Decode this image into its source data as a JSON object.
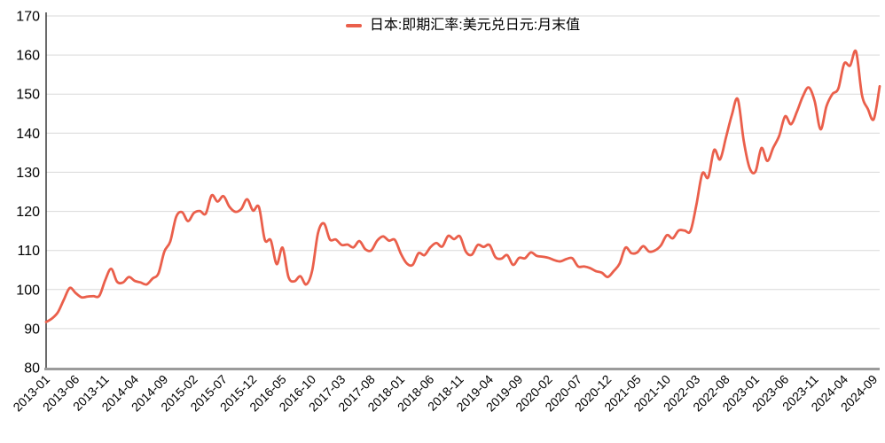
{
  "page": {
    "background": "#ffffff"
  },
  "legend": {
    "label": "日本:即期汇率:美元兑日元:月末值"
  },
  "chart_data": {
    "type": "line",
    "title": "",
    "legend_position": "top-center",
    "grid": "horizontal",
    "xlabel": "",
    "ylabel": "",
    "ylim": [
      80,
      170
    ],
    "ytick_step": 10,
    "yticks": [
      80,
      90,
      100,
      110,
      120,
      130,
      140,
      150,
      160,
      170
    ],
    "x_tick_labels": [
      "2013-01",
      "2013-06",
      "2013-11",
      "2014-04",
      "2014-09",
      "2015-02",
      "2015-07",
      "2015-12",
      "2016-05",
      "2016-10",
      "2017-03",
      "2017-08",
      "2018-01",
      "2018-06",
      "2018-11",
      "2019-04",
      "2019-09",
      "2020-02",
      "2020-07",
      "2020-12",
      "2021-05",
      "2021-10",
      "2022-03",
      "2022-08",
      "2023-01",
      "2023-06",
      "2023-11",
      "2024-04",
      "2024-09"
    ],
    "x_tick_every": 5,
    "series": [
      {
        "name": "日本:即期汇率:美元兑日元:月末值",
        "color": "#EA5F4B",
        "months": [
          "2013-01",
          "2013-02",
          "2013-03",
          "2013-04",
          "2013-05",
          "2013-06",
          "2013-07",
          "2013-08",
          "2013-09",
          "2013-10",
          "2013-11",
          "2013-12",
          "2014-01",
          "2014-02",
          "2014-03",
          "2014-04",
          "2014-05",
          "2014-06",
          "2014-07",
          "2014-08",
          "2014-09",
          "2014-10",
          "2014-11",
          "2014-12",
          "2015-01",
          "2015-02",
          "2015-03",
          "2015-04",
          "2015-05",
          "2015-06",
          "2015-07",
          "2015-08",
          "2015-09",
          "2015-10",
          "2015-11",
          "2015-12",
          "2016-01",
          "2016-02",
          "2016-03",
          "2016-04",
          "2016-05",
          "2016-06",
          "2016-07",
          "2016-08",
          "2016-09",
          "2016-10",
          "2016-11",
          "2016-12",
          "2017-01",
          "2017-02",
          "2017-03",
          "2017-04",
          "2017-05",
          "2017-06",
          "2017-07",
          "2017-08",
          "2017-09",
          "2017-10",
          "2017-11",
          "2017-12",
          "2018-01",
          "2018-02",
          "2018-03",
          "2018-04",
          "2018-05",
          "2018-06",
          "2018-07",
          "2018-08",
          "2018-09",
          "2018-10",
          "2018-11",
          "2018-12",
          "2019-01",
          "2019-02",
          "2019-03",
          "2019-04",
          "2019-05",
          "2019-06",
          "2019-07",
          "2019-08",
          "2019-09",
          "2019-10",
          "2019-11",
          "2019-12",
          "2020-01",
          "2020-02",
          "2020-03",
          "2020-04",
          "2020-05",
          "2020-06",
          "2020-07",
          "2020-08",
          "2020-09",
          "2020-10",
          "2020-11",
          "2020-12",
          "2021-01",
          "2021-02",
          "2021-03",
          "2021-04",
          "2021-05",
          "2021-06",
          "2021-07",
          "2021-08",
          "2021-09",
          "2021-10",
          "2021-11",
          "2021-12",
          "2022-01",
          "2022-02",
          "2022-03",
          "2022-04",
          "2022-05",
          "2022-06",
          "2022-07",
          "2022-08",
          "2022-09",
          "2022-10",
          "2022-11",
          "2022-12",
          "2023-01",
          "2023-02",
          "2023-03",
          "2023-04",
          "2023-05",
          "2023-06",
          "2023-07",
          "2023-08",
          "2023-09",
          "2023-10",
          "2023-11",
          "2023-12",
          "2024-01",
          "2024-02",
          "2024-03",
          "2024-04",
          "2024-05",
          "2024-06",
          "2024-07",
          "2024-08",
          "2024-09",
          "2024-10"
        ],
        "values": [
          91.7,
          92.6,
          94.2,
          97.4,
          100.4,
          99.1,
          98.0,
          98.2,
          98.3,
          98.4,
          102.4,
          105.3,
          102.0,
          101.8,
          103.2,
          102.2,
          101.8,
          101.3,
          102.8,
          104.1,
          109.7,
          112.3,
          118.6,
          119.8,
          117.5,
          119.6,
          120.1,
          119.4,
          124.1,
          122.5,
          123.9,
          121.2,
          119.9,
          120.6,
          123.1,
          120.2,
          121.1,
          112.7,
          112.6,
          106.5,
          110.7,
          103.2,
          102.1,
          103.4,
          101.3,
          104.8,
          114.5,
          116.9,
          112.8,
          112.8,
          111.4,
          111.5,
          110.8,
          112.4,
          110.3,
          110.0,
          112.5,
          113.6,
          112.5,
          112.7,
          109.2,
          106.7,
          106.3,
          109.3,
          108.8,
          110.8,
          111.9,
          111.0,
          113.7,
          112.9,
          113.6,
          109.7,
          108.9,
          111.4,
          110.9,
          111.4,
          108.3,
          107.9,
          108.8,
          106.3,
          108.1,
          108.0,
          109.5,
          108.6,
          108.4,
          108.1,
          107.5,
          107.2,
          107.8,
          108.0,
          105.9,
          105.9,
          105.5,
          104.7,
          104.3,
          103.2,
          104.7,
          106.6,
          110.7,
          109.3,
          109.5,
          111.1,
          109.7,
          110.0,
          111.3,
          113.9,
          113.1,
          115.1,
          115.1,
          115.0,
          121.7,
          129.7,
          128.7,
          135.7,
          133.3,
          138.9,
          144.7,
          148.7,
          138.1,
          131.1,
          130.2,
          136.2,
          132.9,
          136.3,
          139.3,
          144.3,
          142.3,
          145.5,
          149.4,
          151.7,
          148.2,
          141.0,
          146.9,
          150.0,
          151.4,
          157.8,
          157.3,
          160.9,
          149.8,
          146.2,
          143.6,
          152.0
        ]
      }
    ],
    "colors": {
      "line": "#EA5F4B",
      "gridline": "#d9d9d9",
      "y_axis_line": "#1a1a1a",
      "x_axis_line": "#9b9b9b",
      "text": "#000000"
    }
  }
}
